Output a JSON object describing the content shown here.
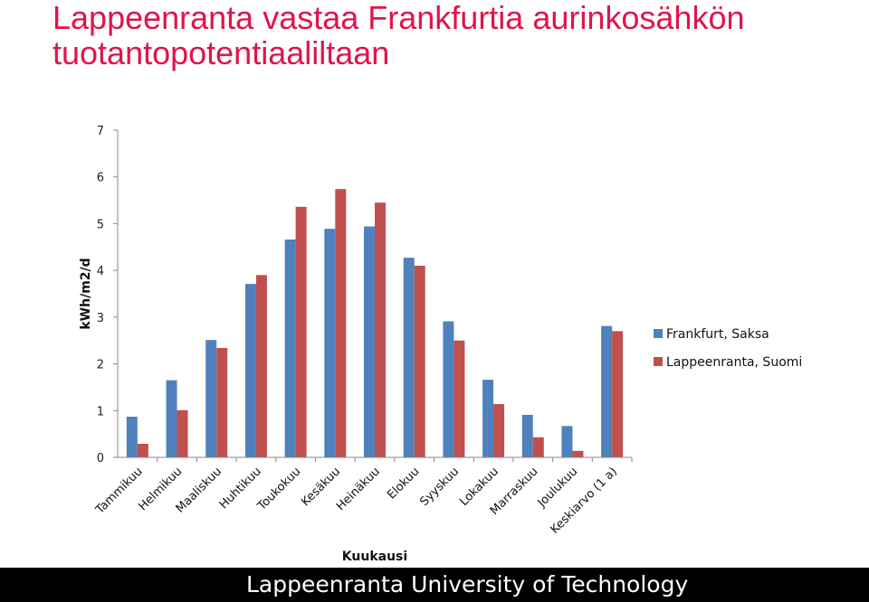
{
  "slide": {
    "title_line1": "Lappeenranta vastaa Frankfurtia aurinkosähkön",
    "title_line2": "tuotantopotentiaaliltaan",
    "footer": "Lappeenranta University of Technology"
  },
  "colors": {
    "title": "#e0144c",
    "series1": "#4f81bd",
    "series2": "#c0504d",
    "footer_bg": "#000000"
  },
  "chart_data": {
    "type": "bar",
    "xlabel": "Kuukausi",
    "ylabel": "kWh/m2/d",
    "ylim": [
      0,
      7
    ],
    "yticks": [
      0,
      1,
      2,
      3,
      4,
      5,
      6,
      7
    ],
    "grid": false,
    "legend_position": "right",
    "categories": [
      "Tammikuu",
      "Helmikuu",
      "Maaliskuu",
      "Huhtikuu",
      "Toukokuu",
      "Kesäkuu",
      "Heinäkuu",
      "Elokuu",
      "Syyskuu",
      "Lokakuu",
      "Marraskuu",
      "Joulukuu",
      "Keskiarvo (1 a)"
    ],
    "series": [
      {
        "name": "Frankfurt, Saksa",
        "values": [
          0.87,
          1.65,
          2.51,
          3.71,
          4.66,
          4.89,
          4.94,
          4.27,
          2.91,
          1.66,
          0.91,
          0.67,
          2.81
        ]
      },
      {
        "name": "Lappeenranta, Suomi",
        "values": [
          0.29,
          1.01,
          2.34,
          3.9,
          5.36,
          5.74,
          5.45,
          4.1,
          2.5,
          1.14,
          0.43,
          0.14,
          2.7
        ]
      }
    ]
  }
}
